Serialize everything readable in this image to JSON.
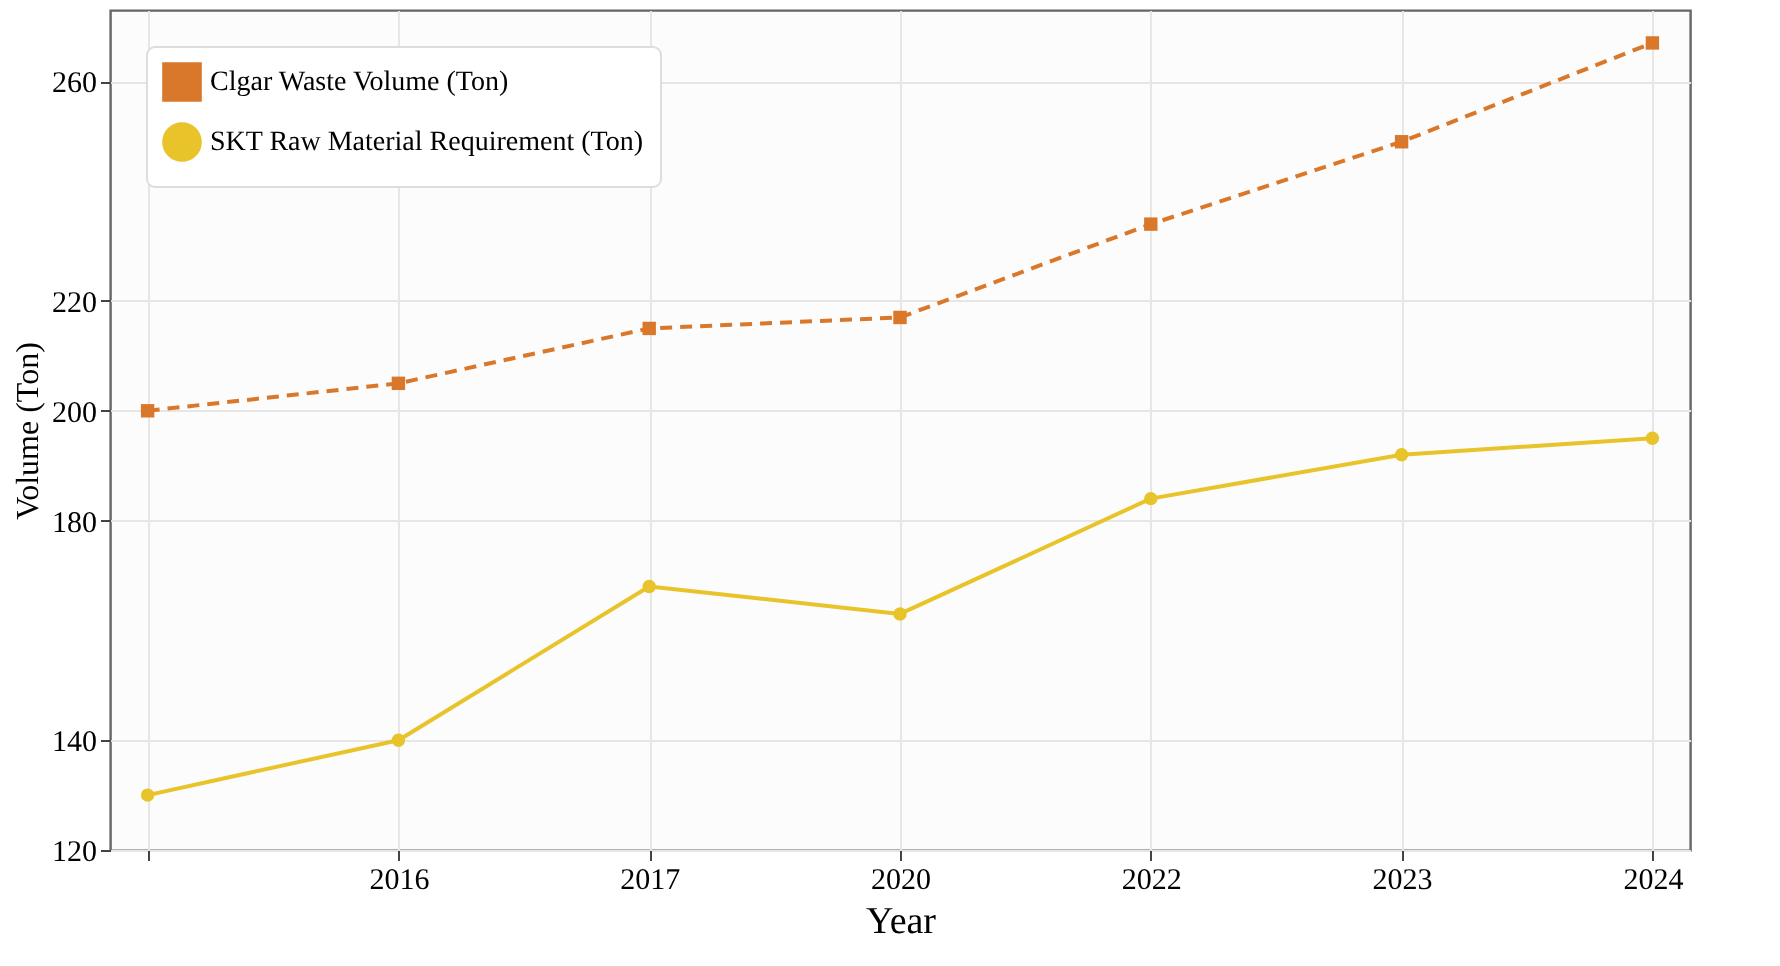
{
  "chart_data": {
    "type": "line",
    "xlabel": "Year",
    "ylabel": "Volume (Ton)",
    "categories": [
      null,
      "2016",
      "2017",
      "2020",
      "2022",
      "2023",
      "2024"
    ],
    "series": [
      {
        "name": "Clgar Waste Volume (Ton)",
        "color": "#d9782a",
        "line_style": "dashed",
        "marker": "square",
        "values": [
          200,
          205,
          215,
          217,
          234,
          249,
          267
        ]
      },
      {
        "name": "SKT Raw Material Requirement (Ton)",
        "color": "#e8c32a",
        "line_style": "solid",
        "marker": "circle",
        "values": [
          130,
          140,
          168,
          163,
          184,
          192,
          195
        ]
      }
    ],
    "ylim": [
      120,
      273
    ],
    "yticks": [
      120,
      140,
      180,
      200,
      220,
      260
    ],
    "grid": true,
    "legend": "top left"
  }
}
